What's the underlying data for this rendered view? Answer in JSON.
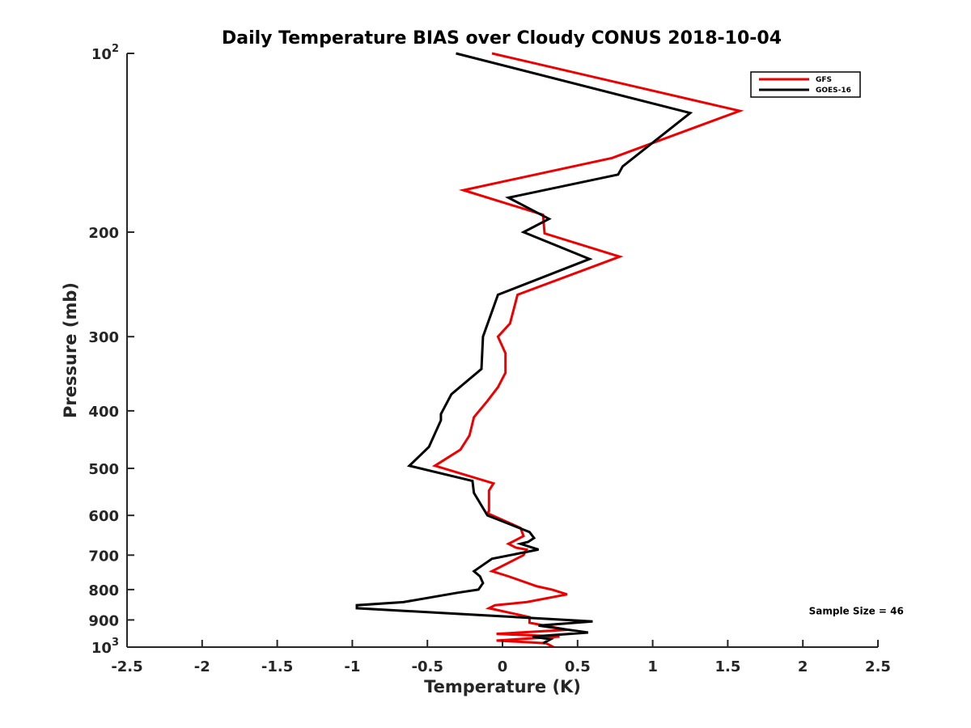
{
  "chart_data": {
    "type": "line",
    "title": "Daily Temperature BIAS over Cloudy CONUS 2018-10-04",
    "xlabel": "Temperature (K)",
    "ylabel": "Pressure (mb)",
    "xlim": [
      -2.5,
      2.5
    ],
    "ylim": [
      100,
      1000
    ],
    "y_scale": "log",
    "y_reversed": true,
    "x_ticks": [
      "-2.5",
      "-2",
      "-1.5",
      "-1",
      "-0.5",
      "0",
      "0.5",
      "1",
      "1.5",
      "2",
      "2.5"
    ],
    "y_ticks": [
      {
        "value": 100,
        "base": "10",
        "exp": "2"
      },
      {
        "value": 200,
        "label": "200"
      },
      {
        "value": 300,
        "label": "300"
      },
      {
        "value": 400,
        "label": "400"
      },
      {
        "value": 500,
        "label": "500"
      },
      {
        "value": 600,
        "label": "600"
      },
      {
        "value": 700,
        "label": "700"
      },
      {
        "value": 800,
        "label": "800"
      },
      {
        "value": 900,
        "label": "900"
      },
      {
        "value": 1000,
        "base": "10",
        "exp": "3"
      }
    ],
    "legend_position": "top-right",
    "grid": false,
    "series": [
      {
        "name": "GFS",
        "color": "#ee0000",
        "points": [
          [
            -0.07,
            100
          ],
          [
            1.58,
            125
          ],
          [
            0.73,
            150
          ],
          [
            -0.26,
            170
          ],
          [
            0.27,
            187
          ],
          [
            0.28,
            201
          ],
          [
            0.78,
            220
          ],
          [
            0.1,
            255
          ],
          [
            0.05,
            285
          ],
          [
            -0.03,
            300
          ],
          [
            0.02,
            320
          ],
          [
            0.02,
            345
          ],
          [
            -0.03,
            365
          ],
          [
            -0.1,
            385
          ],
          [
            -0.19,
            410
          ],
          [
            -0.22,
            440
          ],
          [
            -0.28,
            465
          ],
          [
            -0.45,
            495
          ],
          [
            -0.06,
            530
          ],
          [
            -0.09,
            545
          ],
          [
            -0.09,
            590
          ],
          [
            -0.1,
            595
          ],
          [
            0.12,
            630
          ],
          [
            0.14,
            650
          ],
          [
            0.04,
            670
          ],
          [
            0.09,
            680
          ],
          [
            0.16,
            685
          ],
          [
            0.14,
            700
          ],
          [
            -0.07,
            745
          ],
          [
            0.04,
            760
          ],
          [
            0.23,
            790
          ],
          [
            0.33,
            800
          ],
          [
            0.43,
            815
          ],
          [
            0.16,
            840
          ],
          [
            -0.05,
            850
          ],
          [
            -0.09,
            860
          ],
          [
            0.18,
            890
          ],
          [
            0.18,
            910
          ],
          [
            0.43,
            935
          ],
          [
            -0.04,
            950
          ],
          [
            0.38,
            960
          ],
          [
            -0.04,
            975
          ],
          [
            0.29,
            985
          ],
          [
            0.34,
            1000
          ]
        ]
      },
      {
        "name": "GOES-16",
        "color": "#000000",
        "points": [
          [
            -0.31,
            100
          ],
          [
            1.25,
            126
          ],
          [
            0.8,
            155
          ],
          [
            0.77,
            160
          ],
          [
            0.04,
            175
          ],
          [
            0.31,
            190
          ],
          [
            0.14,
            200
          ],
          [
            0.58,
            222
          ],
          [
            -0.03,
            255
          ],
          [
            -0.13,
            300
          ],
          [
            -0.14,
            340
          ],
          [
            -0.34,
            375
          ],
          [
            -0.41,
            405
          ],
          [
            -0.41,
            415
          ],
          [
            -0.49,
            460
          ],
          [
            -0.62,
            495
          ],
          [
            -0.2,
            525
          ],
          [
            -0.19,
            550
          ],
          [
            -0.1,
            600
          ],
          [
            0.18,
            640
          ],
          [
            0.21,
            655
          ],
          [
            0.17,
            665
          ],
          [
            0.12,
            670
          ],
          [
            0.24,
            685
          ],
          [
            -0.07,
            710
          ],
          [
            -0.19,
            745
          ],
          [
            -0.15,
            760
          ],
          [
            -0.13,
            780
          ],
          [
            -0.16,
            800
          ],
          [
            -0.3,
            810
          ],
          [
            -0.66,
            840
          ],
          [
            -0.97,
            850
          ],
          [
            -0.97,
            860
          ],
          [
            0.6,
            905
          ],
          [
            0.24,
            920
          ],
          [
            0.57,
            945
          ],
          [
            0.2,
            960
          ],
          [
            0.32,
            970
          ],
          [
            0.27,
            985
          ]
        ]
      }
    ],
    "annotations": [
      {
        "text": "Sample Size = 46",
        "x": 2.04,
        "y": 880
      }
    ]
  }
}
